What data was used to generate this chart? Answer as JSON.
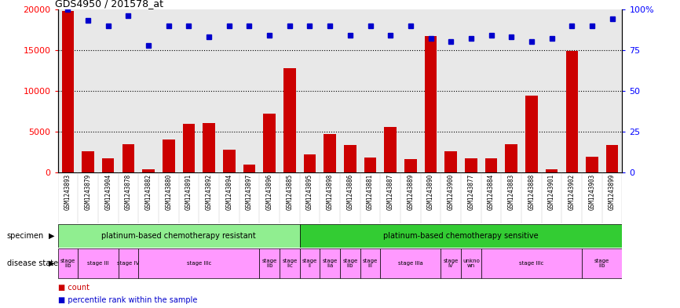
{
  "title": "GDS4950 / 201578_at",
  "samples": [
    "GSM1243893",
    "GSM1243879",
    "GSM1243904",
    "GSM1243878",
    "GSM1243882",
    "GSM1243880",
    "GSM1243891",
    "GSM1243892",
    "GSM1243894",
    "GSM1243897",
    "GSM1243896",
    "GSM1243885",
    "GSM1243895",
    "GSM1243898",
    "GSM1243886",
    "GSM1243881",
    "GSM1243887",
    "GSM1243889",
    "GSM1243890",
    "GSM1243900",
    "GSM1243877",
    "GSM1243884",
    "GSM1243883",
    "GSM1243888",
    "GSM1243901",
    "GSM1243902",
    "GSM1243903",
    "GSM1243899"
  ],
  "counts": [
    19800,
    2600,
    1700,
    3500,
    400,
    4000,
    6000,
    6100,
    2800,
    1000,
    7200,
    12800,
    2200,
    4700,
    3400,
    1800,
    5600,
    1600,
    16700,
    2600,
    1700,
    1700,
    3500,
    9400,
    400,
    14900,
    1900,
    3400
  ],
  "percentile": [
    100,
    93,
    90,
    96,
    78,
    90,
    90,
    83,
    90,
    90,
    84,
    90,
    90,
    90,
    84,
    90,
    84,
    90,
    82,
    80,
    82,
    84,
    83,
    80,
    82,
    90,
    90,
    94
  ],
  "ylim_left": [
    0,
    20000
  ],
  "ylim_right": [
    0,
    100
  ],
  "yticks_left": [
    0,
    5000,
    10000,
    15000,
    20000
  ],
  "yticks_right": [
    0,
    25,
    50,
    75,
    100
  ],
  "bar_color": "#cc0000",
  "dot_color": "#0000cc",
  "plot_bg_color": "#e8e8e8",
  "specimen_groups": [
    {
      "label": "platinum-based chemotherapy resistant",
      "start": 0,
      "end": 12,
      "color": "#90ee90"
    },
    {
      "label": "platinum-based chemotherapy sensitive",
      "start": 12,
      "end": 28,
      "color": "#33cc33"
    }
  ],
  "disease_groups": [
    {
      "label": "stage\nIIb",
      "start": 0,
      "end": 1,
      "color": "#ff99ff"
    },
    {
      "label": "stage III",
      "start": 1,
      "end": 3,
      "color": "#ff99ff"
    },
    {
      "label": "stage IV",
      "start": 3,
      "end": 4,
      "color": "#ff99ff"
    },
    {
      "label": "stage IIIc",
      "start": 4,
      "end": 10,
      "color": "#ff99ff"
    },
    {
      "label": "stage\nIIb",
      "start": 10,
      "end": 11,
      "color": "#ff99ff"
    },
    {
      "label": "stage\nIIc",
      "start": 11,
      "end": 12,
      "color": "#ff99ff"
    },
    {
      "label": "stage\nII",
      "start": 12,
      "end": 13,
      "color": "#ff99ff"
    },
    {
      "label": "stage\nIIa",
      "start": 13,
      "end": 14,
      "color": "#ff99ff"
    },
    {
      "label": "stage\nIIb",
      "start": 14,
      "end": 15,
      "color": "#ff99ff"
    },
    {
      "label": "stage\nIII",
      "start": 15,
      "end": 16,
      "color": "#ff99ff"
    },
    {
      "label": "stage IIIa",
      "start": 16,
      "end": 19,
      "color": "#ff99ff"
    },
    {
      "label": "stage\nIV",
      "start": 19,
      "end": 20,
      "color": "#ff99ff"
    },
    {
      "label": "unkno\nwn",
      "start": 20,
      "end": 21,
      "color": "#ff99ff"
    },
    {
      "label": "stage IIIc",
      "start": 21,
      "end": 26,
      "color": "#ff99ff"
    },
    {
      "label": "stage\nIIb",
      "start": 26,
      "end": 28,
      "color": "#ff99ff"
    }
  ]
}
